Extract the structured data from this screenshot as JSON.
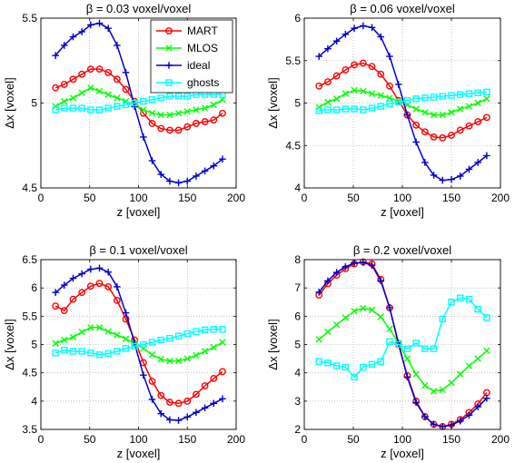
{
  "chart_data": [
    {
      "type": "line",
      "title": "β = 0.03  voxel/voxel",
      "xlabel": "z [voxel]",
      "ylabel": "Δx [voxel]",
      "xlim": [
        0,
        200
      ],
      "ylim": [
        4.5,
        5.5
      ],
      "xticks": [
        0,
        50,
        100,
        150,
        200
      ],
      "xtick_labels": [
        "0",
        "50",
        "100",
        "150",
        "200"
      ],
      "yticks": [
        4.5,
        5,
        5.5
      ],
      "ytick_labels": [
        "4.5",
        "5",
        "5.5"
      ],
      "grid": true,
      "legend": "top-right",
      "x": [
        15,
        24,
        33,
        42,
        51,
        60,
        69,
        78,
        87,
        96,
        105,
        114,
        123,
        132,
        141,
        150,
        159,
        168,
        177,
        186
      ],
      "series": [
        {
          "name": "MART",
          "color": "#ff0000",
          "marker": "circle",
          "values": [
            5.09,
            5.11,
            5.14,
            5.17,
            5.2,
            5.2,
            5.18,
            5.14,
            5.08,
            5.01,
            4.94,
            4.88,
            4.85,
            4.84,
            4.84,
            4.86,
            4.88,
            4.89,
            4.9,
            4.94
          ]
        },
        {
          "name": "MLOS",
          "color": "#00ff00",
          "marker": "x",
          "values": [
            4.98,
            5.01,
            5.03,
            5.06,
            5.09,
            5.07,
            5.05,
            5.03,
            5.01,
            4.99,
            4.96,
            4.94,
            4.93,
            4.93,
            4.94,
            4.95,
            4.96,
            4.97,
            4.99,
            5.02
          ]
        },
        {
          "name": "ideal",
          "color": "#0000cc",
          "marker": "plus",
          "values": [
            5.28,
            5.34,
            5.39,
            5.42,
            5.46,
            5.47,
            5.44,
            5.34,
            5.18,
            4.98,
            4.8,
            4.66,
            4.58,
            4.54,
            4.53,
            4.54,
            4.57,
            4.6,
            4.63,
            4.67
          ]
        },
        {
          "name": "ghosts",
          "color": "#00ffff",
          "marker": "square",
          "values": [
            4.96,
            4.97,
            4.97,
            4.97,
            4.96,
            4.96,
            4.97,
            4.98,
            4.99,
            5.0,
            5.01,
            5.02,
            5.03,
            5.04,
            5.04,
            5.04,
            5.05,
            5.05,
            5.05,
            5.05
          ]
        }
      ]
    },
    {
      "type": "line",
      "title": "β = 0.06  voxel/voxel",
      "xlabel": "z [voxel]",
      "ylabel": "Δx [voxel]",
      "xlim": [
        0,
        200
      ],
      "ylim": [
        4,
        6
      ],
      "xticks": [
        0,
        50,
        100,
        150,
        200
      ],
      "xtick_labels": [
        "0",
        "50",
        "100",
        "150",
        "200"
      ],
      "yticks": [
        4,
        4.5,
        5,
        5.5,
        6
      ],
      "ytick_labels": [
        "4",
        "4.5",
        "5",
        "5.5",
        "6"
      ],
      "grid": true,
      "x": [
        15,
        24,
        33,
        42,
        51,
        60,
        69,
        78,
        87,
        96,
        105,
        114,
        123,
        132,
        141,
        150,
        159,
        168,
        177,
        186
      ],
      "series": [
        {
          "name": "MART",
          "color": "#ff0000",
          "marker": "circle",
          "values": [
            5.2,
            5.25,
            5.32,
            5.39,
            5.45,
            5.47,
            5.43,
            5.34,
            5.2,
            5.03,
            4.86,
            4.74,
            4.66,
            4.6,
            4.59,
            4.62,
            4.68,
            4.73,
            4.78,
            4.83
          ]
        },
        {
          "name": "MLOS",
          "color": "#00ff00",
          "marker": "x",
          "values": [
            4.95,
            5.01,
            5.05,
            5.11,
            5.15,
            5.14,
            5.11,
            5.09,
            5.06,
            5.02,
            4.98,
            4.93,
            4.89,
            4.86,
            4.86,
            4.89,
            4.93,
            4.96,
            5.0,
            5.05
          ]
        },
        {
          "name": "ideal",
          "color": "#0000cc",
          "marker": "plus",
          "values": [
            5.55,
            5.64,
            5.73,
            5.81,
            5.88,
            5.91,
            5.89,
            5.78,
            5.55,
            5.22,
            4.86,
            4.54,
            4.3,
            4.15,
            4.09,
            4.1,
            4.14,
            4.22,
            4.3,
            4.38
          ]
        },
        {
          "name": "ghosts",
          "color": "#00ffff",
          "marker": "square",
          "values": [
            4.91,
            4.92,
            4.92,
            4.93,
            4.93,
            4.92,
            4.94,
            4.96,
            4.99,
            5.01,
            5.03,
            5.05,
            5.06,
            5.07,
            5.08,
            5.09,
            5.1,
            5.11,
            5.12,
            5.13
          ]
        }
      ]
    },
    {
      "type": "line",
      "title": "β = 0.1  voxel/voxel",
      "xlabel": "z [voxel]",
      "ylabel": "Δx [voxel]",
      "xlim": [
        0,
        200
      ],
      "ylim": [
        3.5,
        6.5
      ],
      "xticks": [
        0,
        50,
        100,
        150,
        200
      ],
      "xtick_labels": [
        "0",
        "50",
        "100",
        "150",
        "200"
      ],
      "yticks": [
        3.5,
        4,
        4.5,
        5,
        5.5,
        6,
        6.5
      ],
      "ytick_labels": [
        "3.5",
        "4",
        "4.5",
        "5",
        "5.5",
        "6",
        "6.5"
      ],
      "grid": true,
      "x": [
        15,
        24,
        33,
        42,
        51,
        60,
        69,
        78,
        87,
        96,
        105,
        114,
        123,
        132,
        141,
        150,
        159,
        168,
        177,
        186
      ],
      "series": [
        {
          "name": "MART",
          "color": "#ff0000",
          "marker": "circle",
          "values": [
            5.68,
            5.6,
            5.8,
            5.92,
            6.03,
            6.08,
            6.02,
            5.78,
            5.45,
            5.08,
            4.68,
            4.35,
            4.1,
            3.98,
            3.96,
            4.0,
            4.12,
            4.27,
            4.4,
            4.52
          ]
        },
        {
          "name": "MLOS",
          "color": "#00ff00",
          "marker": "x",
          "values": [
            5.02,
            5.08,
            5.13,
            5.22,
            5.3,
            5.3,
            5.23,
            5.17,
            5.1,
            5.02,
            4.93,
            4.82,
            4.74,
            4.71,
            4.71,
            4.75,
            4.81,
            4.88,
            4.95,
            5.04
          ]
        },
        {
          "name": "ideal",
          "color": "#0000cc",
          "marker": "plus",
          "values": [
            5.92,
            6.05,
            6.17,
            6.25,
            6.33,
            6.35,
            6.28,
            6.02,
            5.56,
            5.02,
            4.46,
            4.03,
            3.78,
            3.67,
            3.66,
            3.72,
            3.8,
            3.88,
            3.96,
            4.04
          ]
        },
        {
          "name": "ghosts",
          "color": "#00ffff",
          "marker": "square",
          "values": [
            4.85,
            4.9,
            4.88,
            4.88,
            4.85,
            4.82,
            4.84,
            4.88,
            4.93,
            4.97,
            5.0,
            5.04,
            5.08,
            5.11,
            5.15,
            5.19,
            5.23,
            5.26,
            5.27,
            5.27
          ]
        }
      ]
    },
    {
      "type": "line",
      "title": "β = 0.2  voxel/voxel",
      "xlabel": "z [voxel]",
      "ylabel": "Δx [voxel]",
      "xlim": [
        0,
        200
      ],
      "ylim": [
        2,
        8
      ],
      "xticks": [
        0,
        50,
        100,
        150,
        200
      ],
      "xtick_labels": [
        "0",
        "50",
        "100",
        "150",
        "200"
      ],
      "yticks": [
        2,
        3,
        4,
        5,
        6,
        7,
        8
      ],
      "ytick_labels": [
        "2",
        "3",
        "4",
        "5",
        "6",
        "7",
        "8"
      ],
      "grid": true,
      "x": [
        15,
        24,
        33,
        42,
        51,
        60,
        69,
        78,
        87,
        96,
        105,
        114,
        123,
        132,
        141,
        150,
        159,
        168,
        177,
        186
      ],
      "series": [
        {
          "name": "MART",
          "color": "#ff0000",
          "marker": "circle",
          "values": [
            6.75,
            7.15,
            7.45,
            7.68,
            7.85,
            7.92,
            7.85,
            7.3,
            6.3,
            5.0,
            3.9,
            3.0,
            2.45,
            2.18,
            2.1,
            2.18,
            2.35,
            2.6,
            2.9,
            3.3
          ]
        },
        {
          "name": "MLOS",
          "color": "#00ff00",
          "marker": "x",
          "values": [
            5.18,
            5.45,
            5.7,
            5.95,
            6.18,
            6.28,
            6.22,
            5.98,
            5.55,
            5.05,
            4.5,
            3.95,
            3.55,
            3.35,
            3.4,
            3.65,
            3.95,
            4.25,
            4.5,
            4.78
          ]
        },
        {
          "name": "ideal",
          "color": "#0000cc",
          "marker": "plus",
          "values": [
            6.85,
            7.25,
            7.55,
            7.75,
            7.88,
            7.9,
            7.8,
            7.25,
            6.3,
            5.05,
            3.85,
            2.95,
            2.45,
            2.18,
            2.1,
            2.15,
            2.3,
            2.5,
            2.8,
            3.1
          ]
        },
        {
          "name": "ghosts",
          "color": "#00ffff",
          "marker": "square",
          "values": [
            4.4,
            4.35,
            4.25,
            4.2,
            3.85,
            4.2,
            4.3,
            4.4,
            5.1,
            5.0,
            4.85,
            5.05,
            4.85,
            4.85,
            5.9,
            6.5,
            6.65,
            6.6,
            6.25,
            5.95
          ]
        }
      ]
    }
  ]
}
